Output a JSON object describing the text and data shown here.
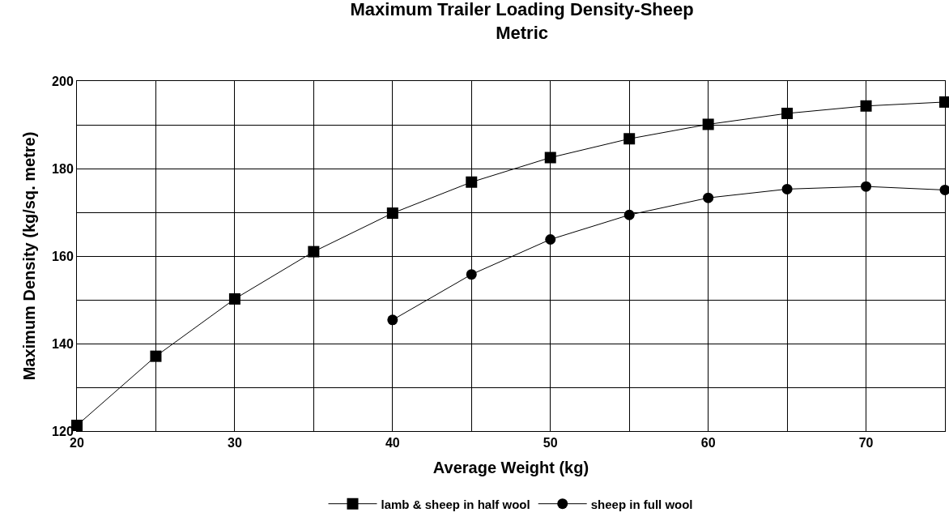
{
  "chart_data": {
    "type": "line",
    "title": "Maximum Trailer Loading Density-Sheep\nMetric",
    "xlabel": "Average Weight (kg)",
    "ylabel": "Maximum Density (kg/sq. metre)",
    "x": [
      20,
      25,
      30,
      35,
      40,
      45,
      50,
      55,
      60,
      65,
      70,
      75
    ],
    "series": [
      {
        "name": "lamb & sheep in half wool",
        "color": "#000000",
        "marker": "square",
        "values": [
          121.3,
          137.1,
          150.2,
          161.0,
          169.8,
          176.9,
          182.5,
          186.8,
          190.1,
          192.6,
          194.3,
          195.2
        ]
      },
      {
        "name": "sheep in full wool",
        "color": "#000000",
        "marker": "circle",
        "values": [
          null,
          null,
          null,
          null,
          145.4,
          155.8,
          163.8,
          169.4,
          173.3,
          175.3,
          175.9,
          175.1
        ]
      }
    ],
    "xlim": [
      20,
      75
    ],
    "ylim": [
      120,
      200
    ],
    "xticks": [
      20,
      {
        "value": 25,
        "label": null
      },
      30,
      {
        "value": 35,
        "label": null
      },
      40,
      {
        "value": 45,
        "label": null
      },
      50,
      {
        "value": 55,
        "label": null
      },
      60,
      {
        "value": 65,
        "label": null
      },
      70,
      {
        "value": 75,
        "label": null
      }
    ],
    "yticks": [
      120,
      {
        "value": 130,
        "label": null
      },
      140,
      {
        "value": 150,
        "label": null
      },
      160,
      {
        "value": 170,
        "label": null
      },
      180,
      {
        "value": 190,
        "label": null
      },
      200
    ],
    "grid": true,
    "legend": "bottom",
    "line_style": "solid"
  }
}
